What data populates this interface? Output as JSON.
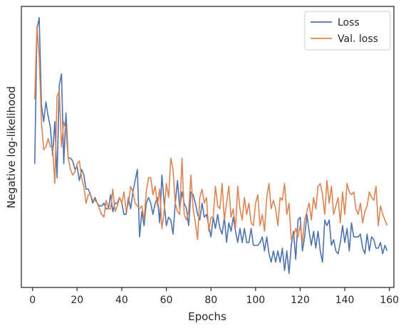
{
  "chart_data": {
    "type": "line",
    "title": "",
    "xlabel": "Epochs",
    "ylabel": "Negative log-likelihood",
    "xlim": [
      -5,
      162
    ],
    "ylim": [
      0,
      1
    ],
    "x_ticks": [
      0,
      20,
      40,
      60,
      80,
      100,
      120,
      140,
      160
    ],
    "x_tick_labels": [
      "0",
      "20",
      "40",
      "60",
      "80",
      "100",
      "120",
      "140",
      "160"
    ],
    "y_ticks_labeled": false,
    "grid": false,
    "legend_position": "top-right",
    "series": [
      {
        "name": "Loss",
        "color": "#4c72b0",
        "x_start": 1,
        "values": [
          0.44,
          0.92,
          0.96,
          0.65,
          0.59,
          0.66,
          0.61,
          0.57,
          0.47,
          0.59,
          0.39,
          0.72,
          0.76,
          0.44,
          0.62,
          0.46,
          0.46,
          0.45,
          0.42,
          0.43,
          0.38,
          0.42,
          0.4,
          0.35,
          0.35,
          0.33,
          0.3,
          0.32,
          0.3,
          0.29,
          0.29,
          0.3,
          0.28,
          0.28,
          0.33,
          0.27,
          0.3,
          0.3,
          0.32,
          0.3,
          0.26,
          0.26,
          0.32,
          0.28,
          0.34,
          0.38,
          0.42,
          0.18,
          0.27,
          0.22,
          0.3,
          0.32,
          0.3,
          0.26,
          0.3,
          0.32,
          0.23,
          0.4,
          0.3,
          0.22,
          0.25,
          0.24,
          0.19,
          0.3,
          0.38,
          0.28,
          0.34,
          0.3,
          0.28,
          0.22,
          0.34,
          0.33,
          0.3,
          0.26,
          0.24,
          0.3,
          0.25,
          0.26,
          0.22,
          0.18,
          0.25,
          0.21,
          0.26,
          0.21,
          0.19,
          0.25,
          0.16,
          0.23,
          0.2,
          0.25,
          0.2,
          0.16,
          0.21,
          0.16,
          0.21,
          0.16,
          0.16,
          0.21,
          0.15,
          0.15,
          0.15,
          0.16,
          0.18,
          0.13,
          0.18,
          0.12,
          0.09,
          0.13,
          0.09,
          0.13,
          0.09,
          0.14,
          0.06,
          0.13,
          0.05,
          0.15,
          0.2,
          0.1,
          0.24,
          0.25,
          0.13,
          0.18,
          0.26,
          0.2,
          0.15,
          0.2,
          0.14,
          0.2,
          0.13,
          0.09,
          0.24,
          0.22,
          0.24,
          0.15,
          0.17,
          0.13,
          0.12,
          0.16,
          0.22,
          0.16,
          0.21,
          0.13,
          0.23,
          0.18,
          0.18,
          0.18,
          0.19,
          0.14,
          0.12,
          0.19,
          0.13,
          0.18,
          0.17,
          0.14,
          0.14,
          0.16,
          0.12,
          0.15,
          0.13
        ]
      },
      {
        "name": "Val. loss",
        "color": "#dd8452",
        "x_start": 1,
        "values": [
          0.67,
          0.93,
          0.82,
          0.59,
          0.49,
          0.5,
          0.53,
          0.5,
          0.5,
          0.37,
          0.68,
          0.7,
          0.5,
          0.59,
          0.56,
          0.46,
          0.42,
          0.4,
          0.41,
          0.44,
          0.45,
          0.39,
          0.36,
          0.3,
          0.33,
          0.33,
          0.31,
          0.31,
          0.3,
          0.28,
          0.26,
          0.25,
          0.31,
          0.28,
          0.28,
          0.35,
          0.27,
          0.29,
          0.32,
          0.3,
          0.34,
          0.27,
          0.3,
          0.36,
          0.34,
          0.3,
          0.29,
          0.28,
          0.29,
          0.24,
          0.34,
          0.39,
          0.39,
          0.33,
          0.36,
          0.29,
          0.35,
          0.21,
          0.27,
          0.37,
          0.32,
          0.46,
          0.42,
          0.3,
          0.27,
          0.26,
          0.46,
          0.26,
          0.24,
          0.27,
          0.4,
          0.28,
          0.23,
          0.17,
          0.32,
          0.35,
          0.3,
          0.32,
          0.2,
          0.25,
          0.25,
          0.36,
          0.29,
          0.28,
          0.37,
          0.24,
          0.3,
          0.36,
          0.25,
          0.28,
          0.21,
          0.36,
          0.28,
          0.24,
          0.32,
          0.26,
          0.3,
          0.23,
          0.22,
          0.3,
          0.33,
          0.22,
          0.26,
          0.2,
          0.32,
          0.37,
          0.28,
          0.31,
          0.28,
          0.22,
          0.32,
          0.31,
          0.37,
          0.26,
          0.3,
          0.17,
          0.18,
          0.21,
          0.18,
          0.22,
          0.16,
          0.24,
          0.27,
          0.3,
          0.24,
          0.32,
          0.28,
          0.36,
          0.37,
          0.33,
          0.26,
          0.38,
          0.3,
          0.36,
          0.26,
          0.29,
          0.32,
          0.23,
          0.34,
          0.26,
          0.37,
          0.34,
          0.33,
          0.34,
          0.28,
          0.26,
          0.3,
          0.23,
          0.27,
          0.29,
          0.34,
          0.32,
          0.31,
          0.36,
          0.22,
          0.29,
          0.26,
          0.24,
          0.22
        ]
      }
    ]
  }
}
